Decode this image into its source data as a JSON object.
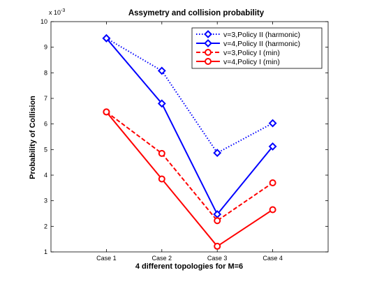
{
  "chart_data": {
    "type": "line",
    "title": "Assymetry and collision probability",
    "xlabel": "4 different topologies for M=6",
    "ylabel": "Probability of Collision",
    "y_multiplier_base": "x 10",
    "y_multiplier_exp": "-3",
    "categories": [
      "Case 1",
      "Case 2",
      "Case 3",
      "Case 4"
    ],
    "xlim": [
      0,
      5
    ],
    "ylim": [
      1,
      10
    ],
    "yticks": [
      "1",
      "2",
      "3",
      "4",
      "5",
      "6",
      "7",
      "8",
      "9",
      "10"
    ],
    "grid": false,
    "legend_position": "top-right",
    "series": [
      {
        "name": "v=3,Policy II (harmonic)",
        "values": [
          9.35,
          8.08,
          4.87,
          6.03
        ],
        "color": "#0000ff",
        "dash": "dotted",
        "marker": "diamond"
      },
      {
        "name": "v=4,Policy II (harmonic)",
        "values": [
          9.35,
          6.8,
          2.47,
          5.12
        ],
        "color": "#0000ff",
        "dash": "solid",
        "marker": "diamond"
      },
      {
        "name": "v=3,Policy I (min)",
        "values": [
          6.47,
          4.85,
          2.22,
          3.7
        ],
        "color": "#ff0000",
        "dash": "dashed",
        "marker": "circle"
      },
      {
        "name": "v=4,Policy I (min)",
        "values": [
          6.47,
          3.85,
          1.22,
          2.65
        ],
        "color": "#ff0000",
        "dash": "solid",
        "marker": "circle"
      }
    ]
  }
}
